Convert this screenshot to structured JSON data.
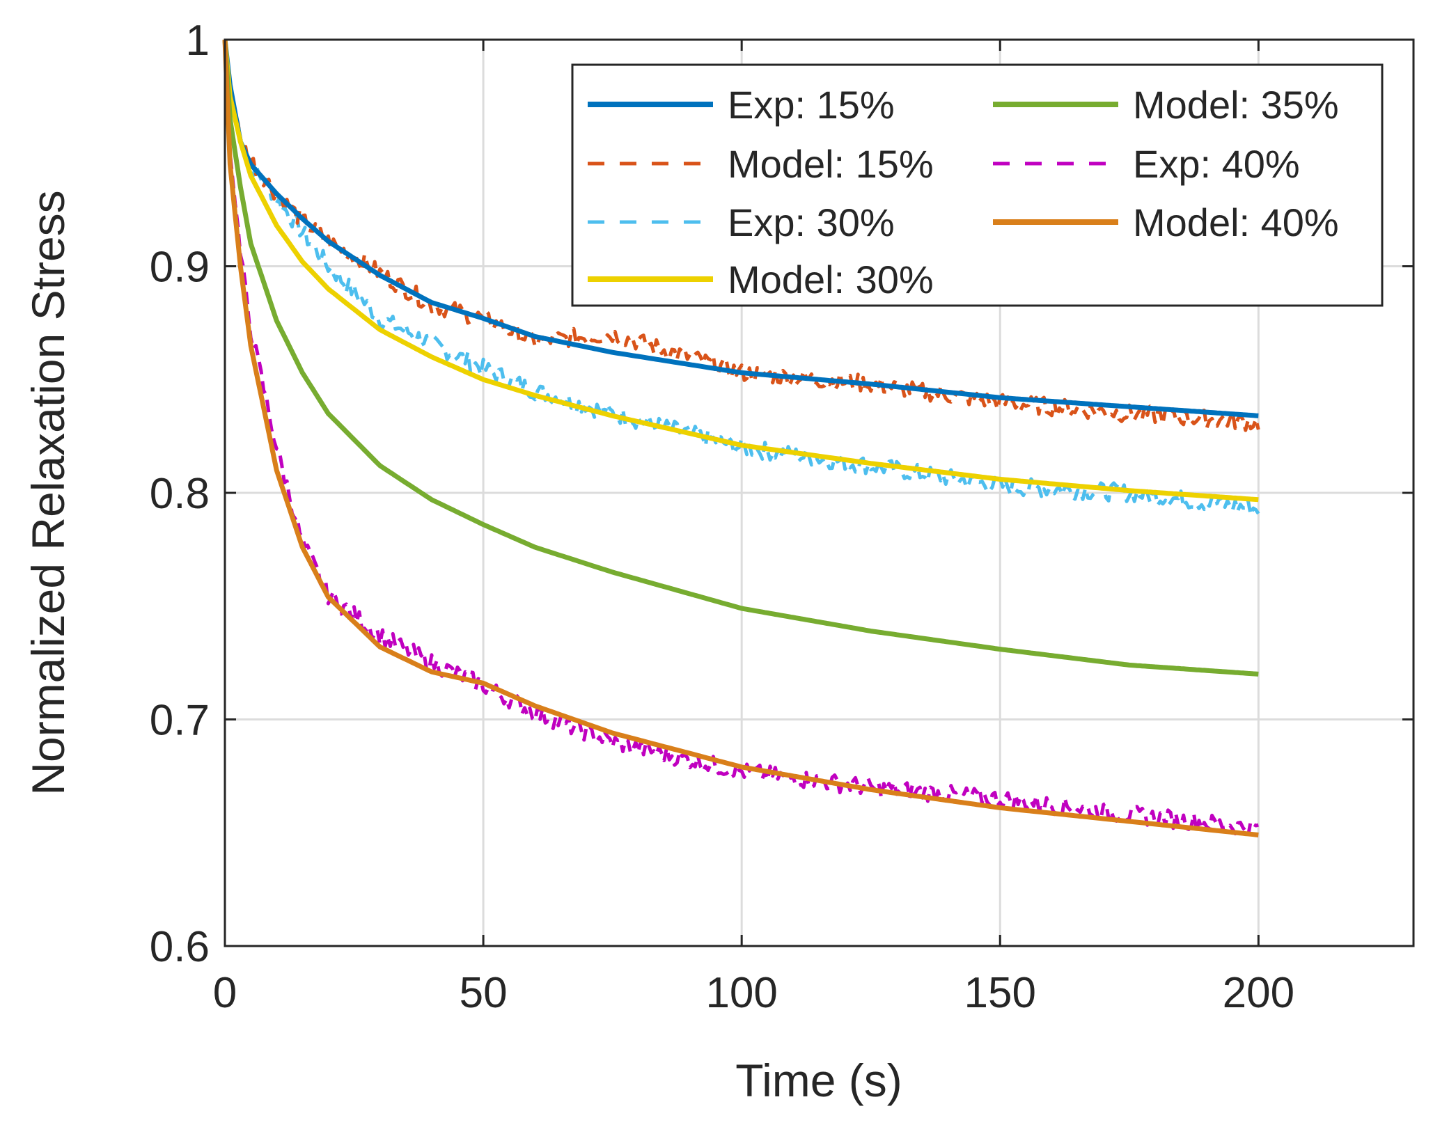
{
  "chart_data": {
    "type": "line",
    "title": "",
    "xlabel": "Time (s)",
    "ylabel": "Normalized Relaxation Stress",
    "xlim": [
      0,
      230
    ],
    "ylim": [
      0.6,
      1
    ],
    "xticks": [
      0,
      50,
      100,
      150,
      200
    ],
    "yticks": [
      0.6,
      0.7,
      0.8,
      0.9,
      1
    ],
    "xtick_labels": [
      "0",
      "50",
      "100",
      "150",
      "200"
    ],
    "ytick_labels": [
      "0.6",
      "0.7",
      "0.8",
      "0.9",
      "1"
    ],
    "grid": true,
    "legend_position": "top-right",
    "legend_columns": 2,
    "x": [
      0,
      1,
      3,
      5,
      10,
      15,
      20,
      30,
      40,
      50,
      60,
      75,
      100,
      125,
      150,
      175,
      200
    ],
    "series": [
      {
        "name": "Exp: 15%",
        "color": "#0072BD",
        "style": "solid",
        "values": [
          1.0,
          0.98,
          0.955,
          0.945,
          0.932,
          0.921,
          0.911,
          0.896,
          0.884,
          0.877,
          0.869,
          0.862,
          0.853,
          0.848,
          0.842,
          0.838,
          0.834
        ]
      },
      {
        "name": "Model: 15%",
        "color": "#D95319",
        "style": "dashed",
        "noisy": true,
        "values": [
          1.0,
          0.98,
          0.955,
          0.947,
          0.932,
          0.92,
          0.911,
          0.897,
          0.883,
          0.877,
          0.867,
          0.87,
          0.853,
          0.848,
          0.84,
          0.835,
          0.831
        ]
      },
      {
        "name": "Exp: 30%",
        "color": "#4DBEEE",
        "style": "dashed",
        "noisy": true,
        "values": [
          1.0,
          0.98,
          0.955,
          0.945,
          0.93,
          0.915,
          0.9,
          0.877,
          0.866,
          0.855,
          0.845,
          0.835,
          0.82,
          0.812,
          0.803,
          0.8,
          0.793
        ]
      },
      {
        "name": "Model: 30%",
        "color": "#EDD100",
        "style": "solid",
        "values": [
          1.0,
          0.975,
          0.955,
          0.94,
          0.918,
          0.902,
          0.89,
          0.872,
          0.86,
          0.85,
          0.843,
          0.834,
          0.821,
          0.813,
          0.806,
          0.801,
          0.797
        ]
      },
      {
        "name": "Model: 35%",
        "color": "#77AC30",
        "style": "solid",
        "values": [
          1.0,
          0.965,
          0.935,
          0.91,
          0.876,
          0.853,
          0.835,
          0.812,
          0.797,
          0.786,
          0.776,
          0.765,
          0.749,
          0.739,
          0.731,
          0.724,
          0.72
        ]
      },
      {
        "name": "Exp: 40%",
        "color": "#C000C0",
        "style": "dashed",
        "noisy": true,
        "values": [
          1.0,
          0.95,
          0.905,
          0.872,
          0.82,
          0.778,
          0.755,
          0.737,
          0.725,
          0.715,
          0.703,
          0.69,
          0.677,
          0.67,
          0.665,
          0.658,
          0.652
        ]
      },
      {
        "name": "Model: 40%",
        "color": "#D97F1A",
        "style": "solid",
        "values": [
          1.0,
          0.945,
          0.9,
          0.865,
          0.81,
          0.776,
          0.754,
          0.732,
          0.721,
          0.716,
          0.706,
          0.694,
          0.679,
          0.669,
          0.661,
          0.655,
          0.649
        ]
      }
    ]
  }
}
